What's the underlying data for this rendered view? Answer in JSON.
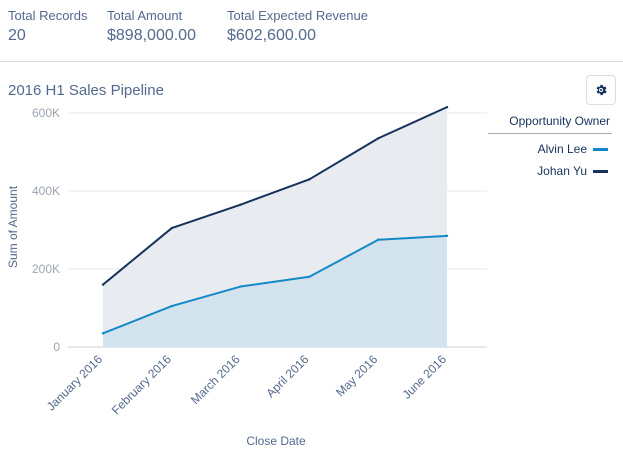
{
  "summary": {
    "total_records_label": "Total Records",
    "total_records_value": "20",
    "total_amount_label": "Total Amount",
    "total_amount_value": "$898,000.00",
    "total_expected_revenue_label": "Total Expected Revenue",
    "total_expected_revenue_value": "$602,600.00"
  },
  "chart_title": "2016 H1 Sales Pipeline",
  "toolbar": {
    "settings_icon": "gear-icon"
  },
  "legend": {
    "title": "Opportunity Owner",
    "items": [
      {
        "label": "Alvin Lee",
        "color": "#1589c7"
      },
      {
        "label": "Johan Yu",
        "color": "#16325c"
      }
    ]
  },
  "chart_data": {
    "type": "area",
    "title": "2016 H1 Sales Pipeline",
    "xlabel": "Close Date",
    "ylabel": "Sum of Amount",
    "categories": [
      "January 2016",
      "February 2016",
      "March 2016",
      "April 2016",
      "May 2016",
      "June 2016"
    ],
    "ylim": [
      0,
      600000
    ],
    "yticks": [
      {
        "value": 0,
        "label": "0"
      },
      {
        "value": 200000,
        "label": "200K"
      },
      {
        "value": 400000,
        "label": "400K"
      },
      {
        "value": 600000,
        "label": "600K"
      }
    ],
    "series": [
      {
        "name": "Alvin Lee",
        "values": [
          35000,
          105000,
          155000,
          180000,
          275000,
          285000
        ],
        "color": "#1589c7",
        "fill": "#d3e3ee"
      },
      {
        "name": "Johan Yu",
        "values": [
          160000,
          305000,
          365000,
          430000,
          535000,
          615000
        ],
        "color": "#16325c",
        "fill": "#e8ebf0"
      }
    ],
    "stacked": false,
    "grid": true,
    "legend_position": "right"
  }
}
